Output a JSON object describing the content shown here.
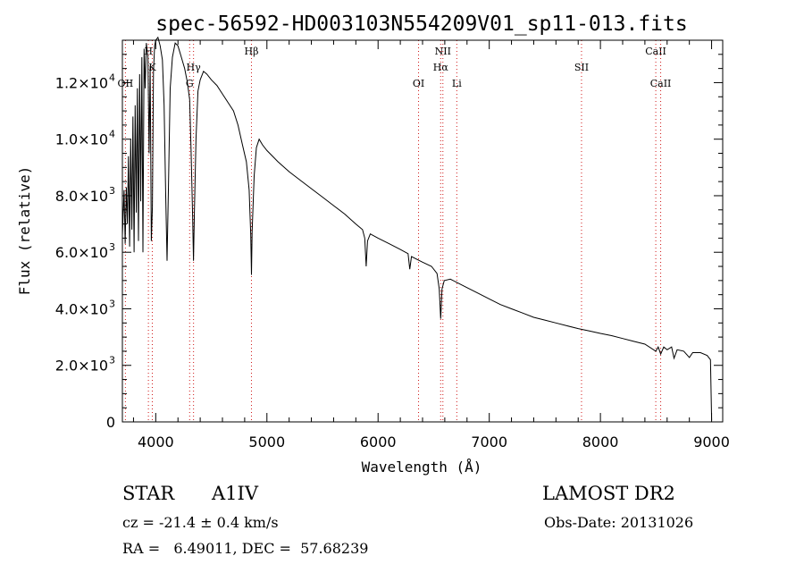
{
  "chart_data": {
    "type": "line",
    "title": "spec-56592-HD003103N554209V01_sp11-013.fits",
    "xlabel": "Wavelength (Å)",
    "ylabel": "Flux (relative)",
    "xlim": [
      3700,
      9100
    ],
    "ylim": [
      0,
      13500
    ],
    "x_ticks": [
      4000,
      5000,
      6000,
      7000,
      8000,
      9000
    ],
    "y_ticks": [
      {
        "value": 0,
        "mantissa": "0",
        "exponent": ""
      },
      {
        "value": 2000,
        "mantissa": "2.0×10",
        "exponent": "3"
      },
      {
        "value": 4000,
        "mantissa": "4.0×10",
        "exponent": "3"
      },
      {
        "value": 6000,
        "mantissa": "6.0×10",
        "exponent": "3"
      },
      {
        "value": 8000,
        "mantissa": "8.0×10",
        "exponent": "3"
      },
      {
        "value": 10000,
        "mantissa": "1.0×10",
        "exponent": "4"
      },
      {
        "value": 12000,
        "mantissa": "1.2×10",
        "exponent": "4"
      }
    ],
    "line_markers": [
      {
        "label": "OII",
        "wavelength": 3727,
        "row": "low"
      },
      {
        "label": "H",
        "wavelength": 3934,
        "row": "top"
      },
      {
        "label": "K",
        "wavelength": 3969,
        "row": "mid"
      },
      {
        "label": "Hγ",
        "wavelength": 4340,
        "row": "mid"
      },
      {
        "label": "G",
        "wavelength": 4305,
        "row": "low"
      },
      {
        "label": "Hβ",
        "wavelength": 4861,
        "row": "top"
      },
      {
        "label": "OI",
        "wavelength": 6364,
        "row": "low"
      },
      {
        "label": "NII",
        "wavelength": 6583,
        "row": "top"
      },
      {
        "label": "Hα",
        "wavelength": 6563,
        "row": "mid"
      },
      {
        "label": "Li",
        "wavelength": 6708,
        "row": "low"
      },
      {
        "label": "SII",
        "wavelength": 7830,
        "row": "mid"
      },
      {
        "label": "CaII",
        "wavelength": 8498,
        "row": "top"
      },
      {
        "label": "CaII",
        "wavelength": 8542,
        "row": "low"
      }
    ],
    "series": [
      {
        "name": "spectrum",
        "points": [
          [
            3700,
            6600
          ],
          [
            3715,
            8200
          ],
          [
            3725,
            6300
          ],
          [
            3735,
            8300
          ],
          [
            3745,
            7000
          ],
          [
            3755,
            9400
          ],
          [
            3765,
            6200
          ],
          [
            3775,
            10000
          ],
          [
            3785,
            6800
          ],
          [
            3795,
            10800
          ],
          [
            3805,
            6000
          ],
          [
            3815,
            11200
          ],
          [
            3825,
            7400
          ],
          [
            3835,
            11800
          ],
          [
            3845,
            6400
          ],
          [
            3855,
            12300
          ],
          [
            3865,
            7800
          ],
          [
            3875,
            12900
          ],
          [
            3885,
            6000
          ],
          [
            3895,
            13200
          ],
          [
            3905,
            11800
          ],
          [
            3915,
            13400
          ],
          [
            3930,
            12900
          ],
          [
            3940,
            9500
          ],
          [
            3950,
            12600
          ],
          [
            3960,
            6400
          ],
          [
            3970,
            7600
          ],
          [
            3980,
            12400
          ],
          [
            3990,
            13300
          ],
          [
            4000,
            13500
          ],
          [
            4020,
            13600
          ],
          [
            4040,
            13300
          ],
          [
            4060,
            12800
          ],
          [
            4075,
            11200
          ],
          [
            4090,
            8000
          ],
          [
            4102,
            5700
          ],
          [
            4114,
            8200
          ],
          [
            4130,
            11800
          ],
          [
            4150,
            12900
          ],
          [
            4175,
            13400
          ],
          [
            4200,
            13300
          ],
          [
            4230,
            12900
          ],
          [
            4260,
            12500
          ],
          [
            4285,
            12000
          ],
          [
            4305,
            11400
          ],
          [
            4318,
            9600
          ],
          [
            4332,
            7300
          ],
          [
            4340,
            5700
          ],
          [
            4348,
            7400
          ],
          [
            4362,
            10000
          ],
          [
            4380,
            11700
          ],
          [
            4400,
            12100
          ],
          [
            4430,
            12400
          ],
          [
            4460,
            12300
          ],
          [
            4500,
            12100
          ],
          [
            4550,
            11900
          ],
          [
            4600,
            11600
          ],
          [
            4650,
            11300
          ],
          [
            4700,
            11000
          ],
          [
            4740,
            10500
          ],
          [
            4780,
            9800
          ],
          [
            4815,
            9200
          ],
          [
            4840,
            8200
          ],
          [
            4855,
            6600
          ],
          [
            4861,
            5200
          ],
          [
            4867,
            6700
          ],
          [
            4885,
            8700
          ],
          [
            4905,
            9700
          ],
          [
            4930,
            10000
          ],
          [
            4960,
            9800
          ],
          [
            5000,
            9600
          ],
          [
            5100,
            9200
          ],
          [
            5200,
            8850
          ],
          [
            5300,
            8550
          ],
          [
            5400,
            8250
          ],
          [
            5500,
            7950
          ],
          [
            5600,
            7650
          ],
          [
            5700,
            7350
          ],
          [
            5800,
            7000
          ],
          [
            5860,
            6800
          ],
          [
            5880,
            6500
          ],
          [
            5893,
            5500
          ],
          [
            5905,
            6400
          ],
          [
            5930,
            6650
          ],
          [
            6000,
            6500
          ],
          [
            6100,
            6300
          ],
          [
            6200,
            6100
          ],
          [
            6270,
            5950
          ],
          [
            6285,
            5400
          ],
          [
            6300,
            5850
          ],
          [
            6400,
            5650
          ],
          [
            6480,
            5500
          ],
          [
            6530,
            5250
          ],
          [
            6550,
            4700
          ],
          [
            6563,
            3650
          ],
          [
            6575,
            4700
          ],
          [
            6595,
            5000
          ],
          [
            6650,
            5050
          ],
          [
            6700,
            4950
          ],
          [
            6800,
            4750
          ],
          [
            6900,
            4550
          ],
          [
            7000,
            4350
          ],
          [
            7100,
            4150
          ],
          [
            7200,
            4000
          ],
          [
            7300,
            3850
          ],
          [
            7400,
            3700
          ],
          [
            7500,
            3600
          ],
          [
            7600,
            3500
          ],
          [
            7700,
            3400
          ],
          [
            7800,
            3300
          ],
          [
            7900,
            3220
          ],
          [
            8000,
            3130
          ],
          [
            8100,
            3050
          ],
          [
            8200,
            2950
          ],
          [
            8300,
            2850
          ],
          [
            8400,
            2750
          ],
          [
            8498,
            2500
          ],
          [
            8520,
            2650
          ],
          [
            8542,
            2400
          ],
          [
            8570,
            2650
          ],
          [
            8600,
            2550
          ],
          [
            8640,
            2650
          ],
          [
            8662,
            2250
          ],
          [
            8690,
            2550
          ],
          [
            8750,
            2500
          ],
          [
            8800,
            2280
          ],
          [
            8830,
            2450
          ],
          [
            8900,
            2450
          ],
          [
            8960,
            2350
          ],
          [
            8990,
            2200
          ],
          [
            9000,
            50
          ]
        ]
      }
    ]
  },
  "info": {
    "object_class": "STAR",
    "subclass": "A1IV",
    "survey": "LAMOST DR2",
    "redshift": "cz = -21.4 ± 0.4 km/s",
    "obs_date": "Obs-Date: 20131026",
    "coords": "RA =   6.49011, DEC =  57.68239"
  }
}
